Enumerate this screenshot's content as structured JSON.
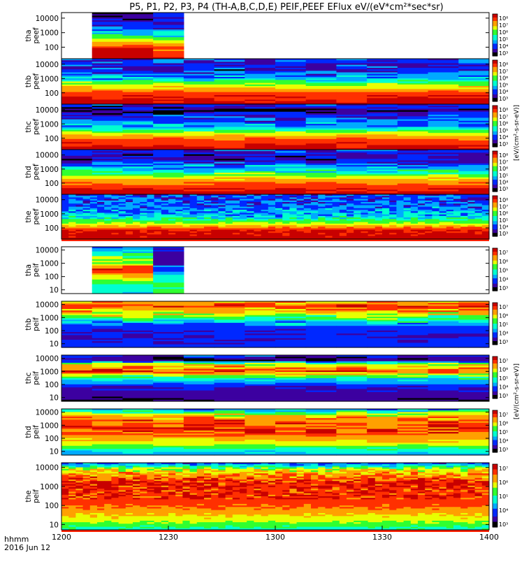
{
  "chart_data": {
    "type": "heatmap",
    "title": "P5, P1, P2, P3, P4 (TH-A,B,C,D,E) PEIF,PEEF EFlux eV/(eV*cm²*sec*sr)",
    "x_ticks": [
      "1200",
      "1230",
      "1300",
      "1330",
      "1400"
    ],
    "x_range_minutes": [
      720,
      840
    ],
    "time_label": "hhmm",
    "date_label": "2016 Jun 12",
    "colorbar_unit": "[eV/(cm²-s-sr-eV)]",
    "colorscale": [
      "#ffffff",
      "#000000",
      "#3c00a0",
      "#0028ff",
      "#00aaff",
      "#00ffd0",
      "#30ff30",
      "#e8ff00",
      "#ffa000",
      "#ff3000",
      "#c80000"
    ],
    "panels": [
      {
        "label": "tha\npeef",
        "yticks": [
          "10000",
          "1000",
          "100"
        ],
        "cbar_ticks": [
          "10⁸",
          "10⁷",
          "10⁶",
          "10⁵",
          "10⁴",
          "10³"
        ]
      },
      {
        "label": "thb\npeef",
        "yticks": [
          "10000",
          "1000",
          "100"
        ],
        "cbar_ticks": [
          "10⁸",
          "10⁷",
          "10⁶",
          "10⁵",
          "10⁴",
          "10³"
        ]
      },
      {
        "label": "thc\npeef",
        "yticks": [
          "10000",
          "1000",
          "100"
        ],
        "cbar_ticks": [
          "10⁸",
          "10⁷",
          "10⁶",
          "10⁵",
          "10⁴",
          "10³"
        ]
      },
      {
        "label": "thd\npeef",
        "yticks": [
          "10000",
          "1000",
          "100"
        ],
        "cbar_ticks": [
          "10⁸",
          "10⁷",
          "10⁶",
          "10⁵",
          "10⁴",
          "10³"
        ]
      },
      {
        "label": "the\npeef",
        "yticks": [
          "10000",
          "1000",
          "100"
        ],
        "cbar_ticks": [
          "10⁸",
          "10⁷",
          "10⁶",
          "10⁵",
          "10⁴",
          "10³"
        ]
      },
      {
        "label": "tha\npeif",
        "yticks": [
          "10000",
          "1000",
          "100",
          "10"
        ],
        "cbar_ticks": [
          "10⁷",
          "10⁶",
          "10⁵",
          "10⁴",
          "10³"
        ]
      },
      {
        "label": "thb\npeif",
        "yticks": [
          "10000",
          "1000",
          "100",
          "10"
        ],
        "cbar_ticks": [
          "10⁷",
          "10⁶",
          "10⁵",
          "10⁴",
          "10³"
        ]
      },
      {
        "label": "thc\npeif",
        "yticks": [
          "10000",
          "1000",
          "100",
          "10"
        ],
        "cbar_ticks": [
          "10⁷",
          "10⁶",
          "10⁵",
          "10⁴",
          "10³"
        ]
      },
      {
        "label": "thd\npeif",
        "yticks": [
          "10000",
          "1000",
          "100",
          "10"
        ],
        "cbar_ticks": [
          "10⁷",
          "10⁶",
          "10⁵",
          "10⁴",
          "10³"
        ]
      },
      {
        "label": "the\npeif",
        "yticks": [
          "10000",
          "1000",
          "100",
          "10"
        ],
        "cbar_ticks": [
          "10⁷",
          "10⁶",
          "10⁵",
          "10⁴",
          "10³"
        ]
      }
    ]
  }
}
